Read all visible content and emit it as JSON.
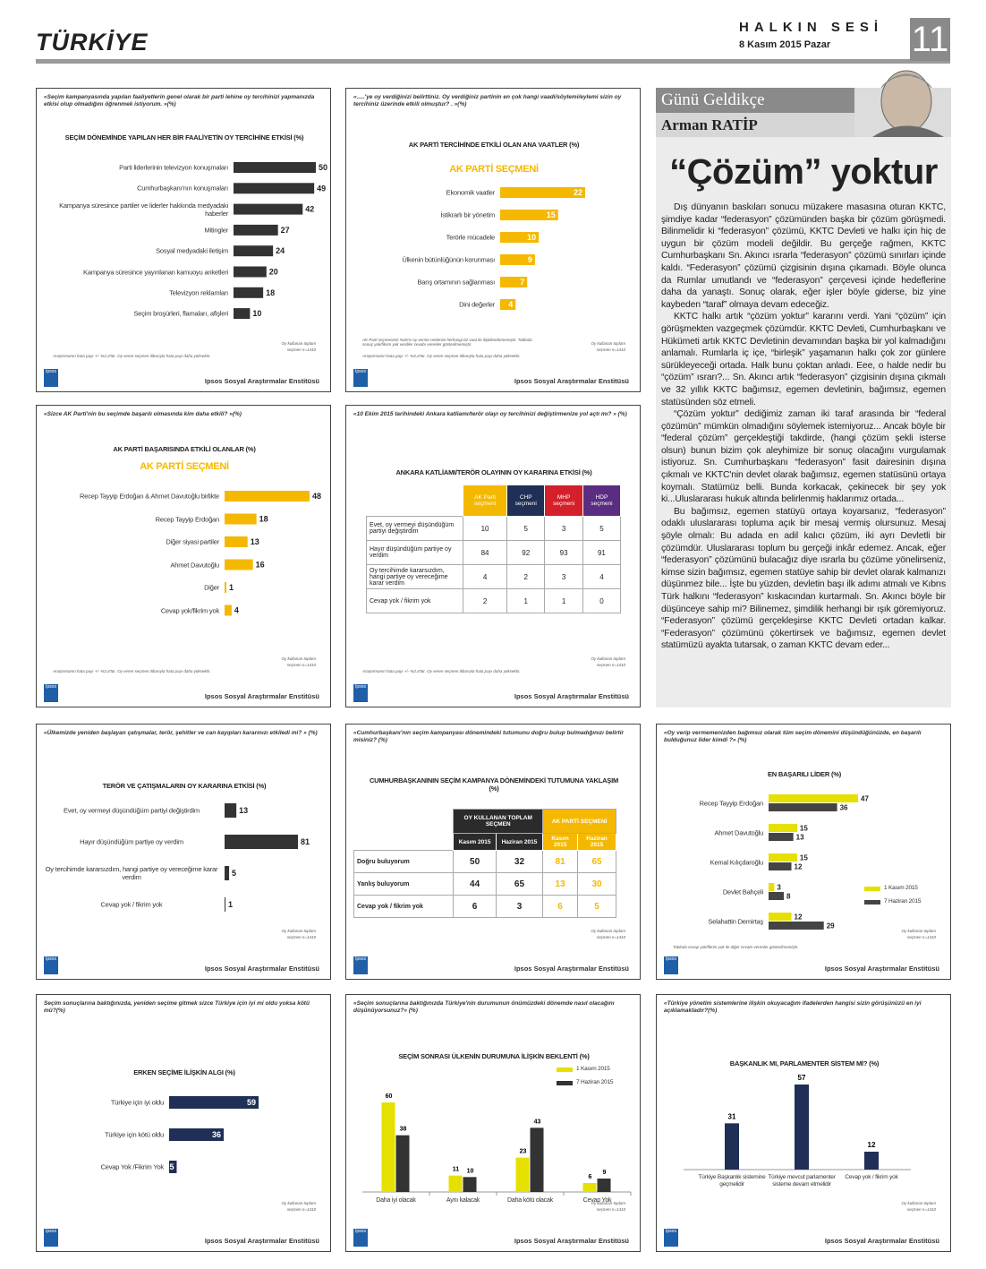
{
  "header": {
    "section": "TÜRKİYE",
    "paper": "HALKIN SESİ",
    "date": "8 Kasım 2015 Pazar",
    "page": "11"
  },
  "column": {
    "series": "Günü Geldikçe",
    "author": "Arman RATİP",
    "headline": "“Çözüm” yoktur",
    "paragraphs": [
      "Dış dünyanın baskıları sonucu müzakere masasına oturan KKTC, şimdiye kadar “federasyon” çözümünden başka bir çözüm görüşmedi. Bilinmelidir ki “federasyon” çözümü, KKTC Devleti ve halkı için hiç de uygun bir çözüm modeli değildir. Bu gerçeğe rağmen, KKTC Cumhurbaşkanı Sn. Akıncı ısrarla “federasyon” çözümü sınırları içinde kaldı. “Federasyon” çözümü çizgisinin dışına çıkamadı. Böyle olunca da Rumlar umutlandı ve “federasyon” çerçevesi içinde hedeflerine daha da yanaştı. Sonuç olarak, eğer işler böyle giderse, biz yine kaybeden “taraf” olmaya devam edeceğiz.",
      "KKTC halkı artık “çözüm yoktur” kararını verdi. Yani “çözüm” için görüşmekten vazgeçmek çözümdür. KKTC Devleti, Cumhurbaşkanı ve Hükümeti artık KKTC Devletinin devamından başka bir yol kalmadığını anlamalı. Rumlarla iç içe, “birleşik” yaşamanın halkı çok zor günlere sürükleyeceği ortada. Halk bunu çoktan anladı. Eee, o halde nedir bu “çözüm” ısrarı?... Sn. Akıncı artık “federasyon” çizgisinin dışına çıkmalı ve 32 yıllık KKTC bağımsız, egemen devletinin, bağımsız, egemen statüsünden söz etmeli.",
      "“Çözüm yoktur” dediğimiz zaman iki taraf arasında bir “federal çözümün” mümkün olmadığını söylemek istemiyoruz... Ancak böyle bir “federal çözüm” gerçekleştiği takdirde, (hangi çözüm şekli isterse olsun) bunun bizim çok aleyhimize bir sonuç olacağını vurgulamak istiyoruz. Sn. Cumhurbaşkanı “federasyon” fasit dairesinin dışına çıkmalı ve KKTC'nin devlet olarak bağımsız, egemen statüsünü ortaya koymalı. Statümüz belli. Bunda korkacak, çekinecek bir şey yok ki...Uluslararası hukuk altında belirlenmiş haklarımız ortada...",
      "Bu bağımsız, egemen statüyü ortaya koyarsanız, “federasyon” odaklı uluslararası topluma açık bir mesaj vermiş olursunuz. Mesaj şöyle olmalı: Bu adada en adil kalıcı çözüm, iki ayrı Devletli bir çözümdür. Uluslararası toplum bu gerçeği inkâr edemez. Ancak, eğer “federasyon” çözümünü bulacağız diye ısrarla bu çözüme yönelirseniz, kimse sizin bağımsız, egemen statüye sahip bir devlet olarak kalmanızı düşünmez bile... İşte bu yüzden, devletin başı ilk adımı atmalı ve Kıbrıs Türk halkını “federasyon” kıskacından kurtarmalı. Sn. Akıncı böyle bir düşünceye sahip mi? Bilinemez, şimdilik herhangi bir ışık göremiyoruz. “Federasyon” çözümü gerçekleşirse KKTC Devleti ortadan kalkar. “Federasyon” çözümünü çökertirsek ve bağımsız, egemen devlet statümüzü ayakta tutarsak, o zaman KKTC devam eder..."
    ]
  },
  "chart_data": [
    {
      "type": "bar",
      "question": "«Seçim kampanyasında yapılan faaliyetlerin genel olarak bir parti lehine oy tercihinizi yapmanızda etkisi olup olmadığını öğrenmek istiyorum. »(%)",
      "title": "SEÇİM DÖNEMİNDE YAPILAN HER BİR FAALİYETİN OY TERCİHİNE ETKİSİ (%)",
      "categories": [
        "Parti liderlerinin televizyon konuşmaları",
        "Cumhurbaşkanı'nın konuşmaları",
        "Kampanya süresince partiler ve liderler hakkında medyadaki haberler",
        "Mitingler",
        "Sosyal medyadaki iletişim",
        "Kampanya süresince yayınlanan kamuoyu anketleri",
        "Televizyon reklamları",
        "Seçim broşürleri, flamaları, afişleri"
      ],
      "values": [
        50,
        49,
        42,
        27,
        24,
        20,
        18,
        10
      ],
      "color": "#333333",
      "label_position": "outside",
      "sample": [
        "Oy kullanan toplam",
        "seçmen n=1410"
      ],
      "margin": "Araştırmanın hata payı +/- %2,4'tür. Oy veren seçmen itibarıyla hata payı daha yüksektir.",
      "logo": "Ipsos",
      "source": "Ipsos Sosyal Araştırmalar Enstitüsü"
    },
    {
      "type": "bar",
      "question": "«.....'ye oy verdiğinizi belirttiniz. Oy verdiğiniz partinin en çok hangi vaadi/söylemi/eylemi sizin oy tercihiniz üzerinde etkili olmuştur? . »(%)",
      "title": "AK PARTİ TERCİHİNDE ETKİLİ OLAN ANA VAATLER (%)",
      "subtitle": "AK PARTİ SEÇMENİ",
      "categories": [
        "Ekonomik vaatler",
        "İstikrarlı bir yönetim",
        "Terörle mücadele",
        "Ülkenin bütünlüğünün korunması",
        "Barış ortamının sağlanması",
        "Dini değerler"
      ],
      "values": [
        22,
        15,
        10,
        9,
        7,
        4
      ],
      "color": "#f5b800",
      "label_position": "inside",
      "note": "AK Parti seçmeninin %26'sı oy verme nedenini herhangi bir vaat ile ilişkilendirmemiştir. Tabloda sonuç yok/fikrim yok verdiler cevabı verenler gösterilmemiştir.",
      "sample": [
        "Oy kullanan toplam",
        "seçmen n=1410"
      ],
      "margin": "Araştırmanın hata payı +/- %2,4'tür. Oy veren seçmen itibarıyla hata payı daha yüksektir.",
      "logo": "Ipsos",
      "source": "Ipsos Sosyal Araştırmalar Enstitüsü"
    },
    {
      "type": "bar",
      "question": "«Sizce AK Parti'nin bu seçimde başarılı olmasında kim daha etkili? »(%)",
      "title": "AK PARTİ BAŞARISINDA ETKİLİ OLANLAR (%)",
      "subtitle": "AK PARTİ SEÇMENİ",
      "categories": [
        "Recep Tayyip Erdoğan & Ahmet Davutoğlu birlikte",
        "Recep Tayyip Erdoğan",
        "Diğer siyasi partiler",
        "Ahmet Davutoğlu",
        "Diğer",
        "Cevap yok/fikrim yok"
      ],
      "values": [
        48,
        18,
        13,
        16,
        1,
        4
      ],
      "color": "#f5b800",
      "label_position": "outside",
      "sample": [
        "Oy kullanan toplam",
        "seçmen n=1410"
      ],
      "margin": "Araştırmanın hata payı +/- %2,4'tür. Oy veren seçmen itibarıyla hata payı daha yüksektir.",
      "logo": "Ipsos",
      "source": "Ipsos Sosyal Araştırmalar Enstitüsü"
    },
    {
      "type": "table",
      "question": "«10 Ekim 2015 tarihindeki Ankara katliamı/terör olayı oy tercihinizi değiştirmenize yol açtı mı? » (%)",
      "title": "ANKARA KATLİAMI/TERÖR OLAYININ OY KARARINA ETKİSİ (%)",
      "columns": [
        {
          "label": "AK Parti seçmeni",
          "color": "#f5b800"
        },
        {
          "label": "CHP seçmeni",
          "color": "#1f2f55"
        },
        {
          "label": "MHP seçmeni",
          "color": "#d3202a"
        },
        {
          "label": "HDP seçmeni",
          "color": "#5a2d82"
        }
      ],
      "rows": [
        {
          "label": "Evet, oy vermeyi düşündüğüm partiyi değiştirdim",
          "values": [
            10,
            5,
            3,
            5
          ]
        },
        {
          "label": "Hayır düşündüğüm partiye oy verdim",
          "values": [
            84,
            92,
            93,
            91
          ]
        },
        {
          "label": "Oy tercihimde kararsızdım, hangi partiye oy vereceğime karar verdim",
          "values": [
            4,
            2,
            3,
            4
          ]
        },
        {
          "label": "Cevap yok / fikrim yok",
          "values": [
            2,
            1,
            1,
            0
          ]
        }
      ],
      "sample": [
        "Oy kullanan toplam",
        "seçmen n=1410"
      ],
      "margin": "Araştırmanın hata payı +/- %2,4'tür. Oy veren seçmen itibarıyla hata payı daha yüksektir.",
      "logo": "Ipsos",
      "source": "Ipsos Sosyal Araştırmalar Enstitüsü"
    },
    {
      "type": "bar",
      "question": "«Ülkemizde yeniden başlayan çatışmalar, terör, şehitler ve can kayıpları kararınızı etkiledi mi? » (%)",
      "title": "TERÖR VE ÇATIŞMALARIN OY KARARINA ETKİSİ (%)",
      "categories": [
        "Evet, oy vermeyi düşündüğüm partiyi değiştirdim",
        "Hayır düşündüğüm partiye oy verdim",
        "Oy tercihimde kararsızdım, hangi partiye oy vereceğime karar verdim",
        "Cevap yok / fikrim yok"
      ],
      "values": [
        13,
        81,
        5,
        1
      ],
      "color": "#333333",
      "label_position": "outside",
      "sample": [
        "Oy kullanan toplam",
        "seçmen n=1410"
      ],
      "logo": "Ipsos",
      "source": "Ipsos Sosyal Araştırmalar Enstitüsü"
    },
    {
      "type": "table",
      "question": "«Cumhurbaşkanı'nın seçim kampanyası dönemindeki tutumunu doğru bulup bulmadığınızı belirtir misiniz? (%)",
      "title": "CUMHURBAŞKANININ SEÇİM KAMPANYA DÖNEMİNDEKİ TUTUMUNA YAKLAŞIM (%)",
      "column_groups": [
        {
          "label": "OY KULLANAN TOPLAM SEÇMEN",
          "color": "#2b2b2b"
        },
        {
          "label": "AK PARTİ SEÇMENİ",
          "color": "#f5b800"
        }
      ],
      "columns": [
        {
          "label": "Kasım 2015",
          "color": "#2b2b2b",
          "text_color": "#222222"
        },
        {
          "label": "Haziran 2015",
          "color": "#2b2b2b",
          "text_color": "#222222"
        },
        {
          "label": "Kasım 2015",
          "color": "#f5b800",
          "text_color": "#f5b800"
        },
        {
          "label": "Haziran 2015",
          "color": "#f5b800",
          "text_color": "#f5b800"
        }
      ],
      "rows": [
        {
          "label": "Doğru buluyorum",
          "values": [
            50,
            32,
            81,
            65
          ]
        },
        {
          "label": "Yanlış buluyorum",
          "values": [
            44,
            65,
            13,
            30
          ]
        },
        {
          "label": "Cevap yok / fikrim yok",
          "values": [
            6,
            3,
            6,
            5
          ]
        }
      ],
      "sample": [
        "Oy kullanan toplam",
        "seçmen n=1410"
      ],
      "logo": "Ipsos",
      "source": "Ipsos Sosyal Araştırmalar Enstitüsü"
    },
    {
      "type": "groupedbar",
      "question": "«Oy verip vermemenizden bağımsız olarak tüm seçim dönemini düşündüğünüzde, en başarılı bulduğunuz lider kimdi ?» (%)",
      "title": "EN BAŞARILI LİDER (%)",
      "categories": [
        "Recep Tayyip Erdoğan",
        "Ahmet Davutoğlu",
        "Kemal Kılıçdaroğlu",
        "Devlet Bahçeli",
        "Selahattin Demirtaş"
      ],
      "series": [
        {
          "name": "1 Kasım 2015",
          "color": "#e6e000",
          "values": [
            47,
            15,
            15,
            3,
            12
          ]
        },
        {
          "name": "7 Haziran 2015",
          "color": "#444444",
          "values": [
            36,
            13,
            12,
            8,
            29
          ]
        }
      ],
      "note": "Tabloda cevap yok/fikrim yok ile diğer cevabı verenler gösterilmemiştir.",
      "sample": [
        "Oy kullanan toplam",
        "seçmen n=1410"
      ],
      "logo": "Ipsos",
      "source": "Ipsos Sosyal Araştırmalar Enstitüsü"
    },
    {
      "type": "bar",
      "question": "Seçim sonuçlarına baktığınızda, yeniden seçime gitmek sizce Türkiye için iyi mi oldu yoksa kötü mü?(%)",
      "title": "ERKEN SEÇİME İLİŞKİN ALGI (%)",
      "categories": [
        "Türkiye için iyi oldu",
        "Türkiye için kötü oldu",
        "Cevap Yok /Fikrim Yok"
      ],
      "values": [
        59,
        36,
        5
      ],
      "color": "#1f2f55",
      "label_position": "inside",
      "sample": [
        "Oy kullanan toplam",
        "seçmen n=1410"
      ],
      "logo": "Ipsos",
      "source": "Ipsos Sosyal Araştırmalar Enstitüsü"
    },
    {
      "type": "groupedcolumn",
      "question": "«Seçim sonuçlarına baktığınızda Türkiye'nin durumunun önümüzdeki dönemde nasıl olacağını düşünüyorsunuz?» (%)",
      "title": "SEÇİM SONRASI ÜLKENİN DURUMUNA İLİŞKİN BEKLENTİ (%)",
      "categories": [
        "Daha iyi olacak",
        "Aynı kalacak",
        "Daha kötü olacak",
        "Cevap Yok"
      ],
      "series": [
        {
          "name": "1 Kasım 2015",
          "color": "#e6e000",
          "values": [
            60,
            11,
            23,
            6
          ]
        },
        {
          "name": "7 Haziran 2015",
          "color": "#333333",
          "values": [
            38,
            10,
            43,
            9
          ]
        }
      ],
      "sample": [
        "Oy kullanan toplam",
        "seçmen n=1410"
      ],
      "logo": "Ipsos",
      "source": "Ipsos Sosyal Araştırmalar Enstitüsü"
    },
    {
      "type": "column",
      "question": "«Türkiye yönetim sistemlerine ilişkin okuyacağım ifadelerden hangisi sizin görüşünüzü en iyi açıklamaktadır?(%)",
      "title": "BAŞKANLIK MI, PARLAMENTER SİSTEM Mİ? (%)",
      "categories": [
        "Türkiye Başkanlık sistemine geçmelidir",
        "Türkiye mevcut parlamenter sisteme devam etmelidir",
        "Cevap yok / fikrim yok"
      ],
      "values": [
        31,
        57,
        12
      ],
      "color": "#1f2f55",
      "sample": [
        "Oy kullanan toplam",
        "seçmen n=1410"
      ],
      "logo": "Ipsos",
      "source": "Ipsos Sosyal Araştırmalar Enstitüsü"
    }
  ]
}
